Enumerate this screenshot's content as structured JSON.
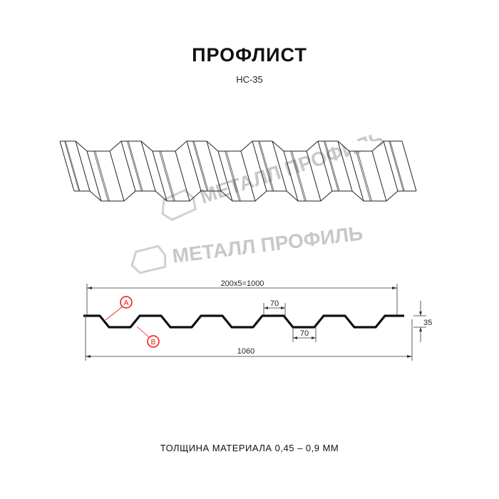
{
  "title": "ПРОФЛИСТ",
  "subtitle": "НС-35",
  "watermark": "МЕТАЛЛ ПРОФИЛЬ",
  "dimensions": {
    "pitch_total": "200x5=1000",
    "top_width": "70",
    "bottom_width": "70",
    "height": "35",
    "full_width": "1060"
  },
  "labels": {
    "a": "A",
    "b": "B"
  },
  "footer": "ТОЛЩИНА МАТЕРИАЛА 0,45 – 0,9 ММ",
  "colors": {
    "profile": "#111111",
    "callout": "#e11111",
    "watermark": "#c8c8c8"
  }
}
